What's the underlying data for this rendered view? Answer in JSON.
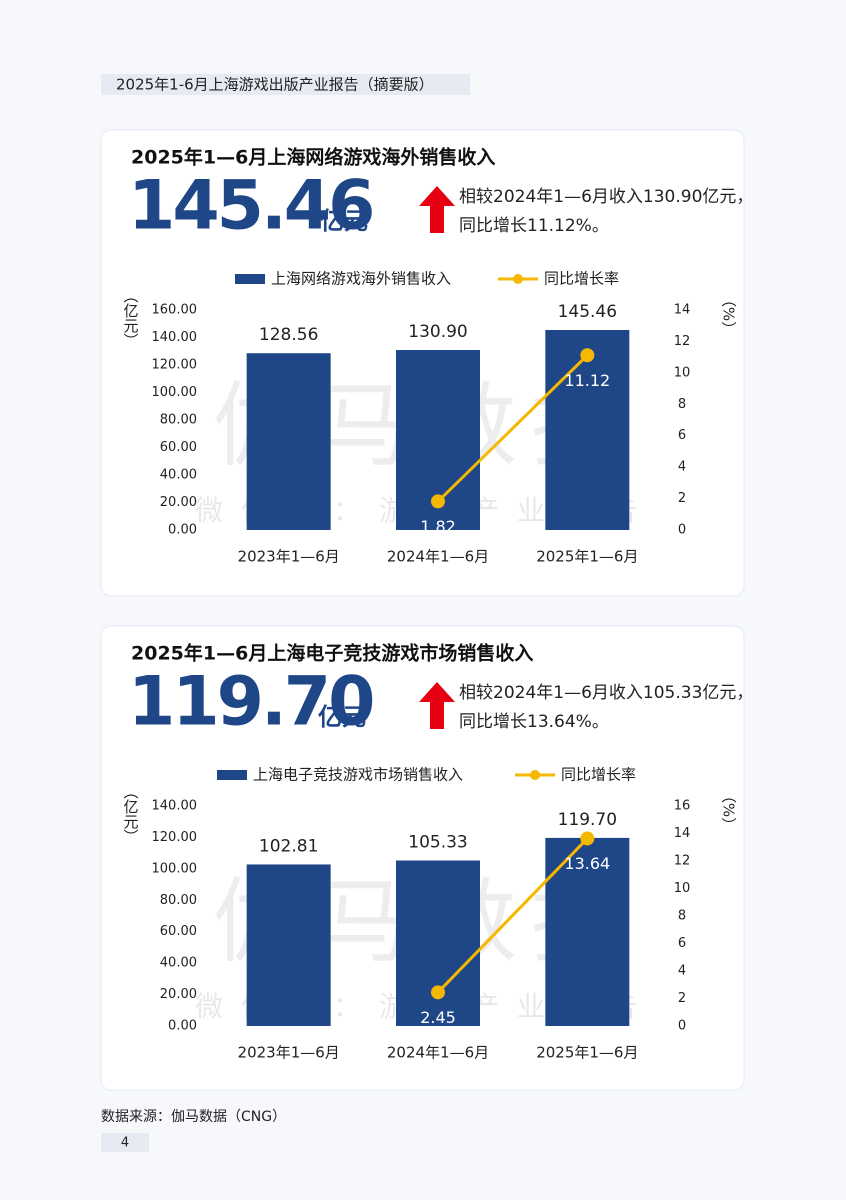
{
  "header": {
    "title": "2025年1-6月上海游戏出版产业报告（摘要版）"
  },
  "chart_data": [
    {
      "type": "combo",
      "title": "2025年1—6月上海网络游戏海外销售收入",
      "headline": {
        "value": "145.46",
        "unit": "亿元"
      },
      "note": [
        "相较2024年1—6月收入130.90亿元，",
        "同比增长11.12%。"
      ],
      "categories": [
        "2023年1—6月",
        "2024年1—6月",
        "2025年1—6月"
      ],
      "series": [
        {
          "name": "上海网络游戏海外销售收入",
          "type": "bar",
          "color": "#1f4788",
          "values": [
            128.56,
            130.9,
            145.46
          ],
          "value_labels": [
            "128.56",
            "130.90",
            "145.46"
          ]
        },
        {
          "name": "同比增长率",
          "type": "line",
          "axis": "y2",
          "color": "#f5b800",
          "values": [
            null,
            1.82,
            11.12
          ]
        }
      ],
      "ylabel": "（亿元）",
      "y2label": "（%）",
      "ylim": [
        0,
        160
      ],
      "yticks": [
        {
          "value": 0,
          "label": "0.00"
        },
        {
          "value": 20,
          "label": "20.00"
        },
        {
          "value": 40,
          "label": "40.00"
        },
        {
          "value": 60,
          "label": "60.00"
        },
        {
          "value": 80,
          "label": "80.00"
        },
        {
          "value": 100,
          "label": "100.00"
        },
        {
          "value": 120,
          "label": "120.00"
        },
        {
          "value": 140,
          "label": "140.00"
        },
        {
          "value": 160,
          "label": "160.00"
        }
      ],
      "y2lim": [
        0,
        14
      ],
      "y2ticks": [
        0,
        2,
        4,
        6,
        8,
        10,
        12,
        14
      ],
      "watermark": [
        "伽马数据",
        "微信号：游戏产业报告"
      ]
    },
    {
      "type": "combo",
      "title": "2025年1—6月上海电子竞技游戏市场销售收入",
      "headline": {
        "value": "119.70",
        "unit": "亿元"
      },
      "note": [
        "相较2024年1—6月收入105.33亿元，",
        "同比增长13.64%。"
      ],
      "categories": [
        "2023年1—6月",
        "2024年1—6月",
        "2025年1—6月"
      ],
      "series": [
        {
          "name": "上海电子竞技游戏市场销售收入",
          "type": "bar",
          "color": "#1f4788",
          "values": [
            102.81,
            105.33,
            119.7
          ],
          "value_labels": [
            "102.81",
            "105.33",
            "119.70"
          ]
        },
        {
          "name": "同比增长率",
          "type": "line",
          "axis": "y2",
          "color": "#f5b800",
          "values": [
            null,
            2.45,
            13.64
          ]
        }
      ],
      "ylabel": "（亿元）",
      "y2label": "（%）",
      "ylim": [
        0,
        140
      ],
      "yticks": [
        {
          "value": 0,
          "label": "0.00"
        },
        {
          "value": 20,
          "label": "20.00"
        },
        {
          "value": 40,
          "label": "40.00"
        },
        {
          "value": 60,
          "label": "60.00"
        },
        {
          "value": 80,
          "label": "80.00"
        },
        {
          "value": 100,
          "label": "100.00"
        },
        {
          "value": 120,
          "label": "120.00"
        },
        {
          "value": 140,
          "label": "140.00"
        }
      ],
      "y2lim": [
        0,
        16
      ],
      "y2ticks": [
        0,
        2,
        4,
        6,
        8,
        10,
        12,
        14,
        16
      ],
      "watermark": [
        "伽马数据",
        "微信号：游戏产业报告"
      ]
    }
  ],
  "footer": {
    "source": "数据来源：伽马数据（CNG）",
    "page": "4"
  }
}
